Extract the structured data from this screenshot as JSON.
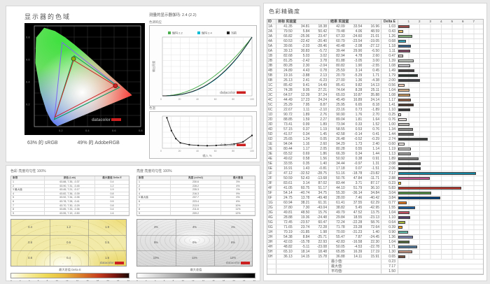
{
  "gamut": {
    "title": "显示器的色域",
    "caption_srgb": "63% 的 sRGB",
    "caption_adobergb": "49% 的 AdobeRGB",
    "axis_ticks": [
      "0.2",
      "0.4",
      "0.6",
      "0.8"
    ],
    "triangles": {
      "display": "#cc2222",
      "srgb": "#00a650",
      "adobergb": "#7b68ee"
    }
  },
  "tone": {
    "title": "测量的显示器伽玛:  2.4 (2.2)",
    "chart_label": "色调响应",
    "legend": [
      {
        "label": "伽玛 2.2",
        "color": "#4caf50"
      },
      {
        "label": "伽玛 2.4",
        "color": "#00bcd4"
      },
      {
        "label": "当前",
        "color": "#222222"
      }
    ],
    "ylabel": "输出亮度",
    "x_ticks": [
      "0",
      "20",
      "40",
      "60",
      "80",
      "100"
    ],
    "temp_chart_label": "色温",
    "temp_xlabel": "输入 %",
    "temp_points": [
      [
        5,
        0.95
      ],
      [
        10,
        0.55
      ],
      [
        15,
        0.3
      ],
      [
        20,
        0.17
      ],
      [
        30,
        0.11
      ],
      [
        40,
        0.09
      ],
      [
        50,
        0.08
      ],
      [
        60,
        0.09
      ],
      [
        70,
        0.11
      ],
      [
        80,
        0.13
      ],
      [
        90,
        0.2
      ],
      [
        100,
        0.4
      ]
    ]
  },
  "logo_text": "datacolor",
  "uniformity_color": {
    "title": "色彩 亮度均匀性 100%",
    "headers": [
      "象限",
      "颜色 (Lab)",
      "最大差值 Delta E"
    ],
    "rows": [
      [
        "1",
        "63.88, 7.35, -0.37",
        "0.4"
      ],
      [
        "2",
        "63.90, 7.31, -0.45",
        "1.2"
      ],
      [
        "3  最大值",
        "63.45, 7.21, -0.17",
        "1.9"
      ],
      [
        "4",
        "63.82, 7.36, -0.39",
        "0.8"
      ],
      [
        "5",
        "63.92, 7.34, -0.35",
        "0.6"
      ],
      [
        "6",
        "63.78, 7.28, -0.41",
        "0.5"
      ],
      [
        "7",
        "63.70, 7.30, -0.29",
        "0.8"
      ],
      [
        "8",
        "63.85, 7.33, -0.36",
        "0.4"
      ],
      [
        "9",
        "63.55, 7.19, -0.50",
        "1.6"
      ]
    ],
    "contour_values": [
      [
        "0.4",
        "1.2",
        "1.9"
      ],
      [
        "0.8",
        "0.6",
        "0.5"
      ],
      [
        "0.8",
        "0.4",
        "1.6"
      ]
    ],
    "scale_label": "最大差值 Delta E",
    "scale_min": 0,
    "scale_max": 24
  },
  "uniformity_lum": {
    "title": "亮度 亮度均匀性 100%",
    "headers": [
      "象限",
      "亮度 (cd/m2)",
      "最大差值"
    ],
    "rows": [
      [
        "1",
        "230.6",
        "3%"
      ],
      [
        "2",
        "228.2",
        "4%"
      ],
      [
        "3",
        "235.3",
        "1%"
      ],
      [
        "4",
        "216.3",
        "9%"
      ],
      [
        "5  最大值",
        "237.7",
        "0%"
      ],
      [
        "6",
        "223.4",
        "6%"
      ],
      [
        "7",
        "213.9",
        "10%"
      ],
      [
        "8",
        "211.6",
        "11%"
      ],
      [
        "9",
        "209.2",
        "12%"
      ]
    ],
    "contour_values": [
      [
        "3%",
        "4%",
        "1%"
      ],
      [
        "9%",
        "0%",
        "6%"
      ],
      [
        "10%",
        "11%",
        "12%"
      ]
    ],
    "scale_label": "最大差值",
    "scale_min": 0,
    "scale_max": 24
  },
  "accuracy": {
    "title": "色彩精确度",
    "headers": {
      "id": "ID",
      "target": "目标 实验室",
      "result": "结果 实验室",
      "delta": "Delta E"
    },
    "scale_ticks": [
      "1",
      "2",
      "3",
      "4",
      "5",
      "6",
      "7"
    ],
    "rows": [
      [
        "1A",
        41.35,
        34.81,
        18.38,
        42.09,
        33.54,
        16.96,
        1.03
      ],
      [
        "2A",
        79.5,
        5.84,
        50.42,
        79.48,
        4.06,
        48.59,
        0.43
      ],
      [
        "3A",
        66.82,
        -25.06,
        23.47,
        67.33,
        -24.6,
        21.01,
        1.26
      ],
      [
        "4A",
        60.53,
        -22.42,
        -20.4,
        60.79,
        -23.54,
        -19.05,
        0.68
      ],
      [
        "5A",
        39.66,
        -2.03,
        -28.46,
        40.48,
        -2.08,
        -27.12,
        1.18
      ],
      [
        "6A",
        39.13,
        30.83,
        -5.72,
        39.44,
        29.9,
        -6.5,
        1.11
      ],
      [
        "1B",
        82.68,
        5.03,
        3.02,
        82.94,
        4.78,
        2.6,
        0.47
      ],
      [
        "2B",
        81.25,
        -2.42,
        3.78,
        81.88,
        -3.05,
        3.0,
        1.39
      ],
      [
        "3B",
        80.28,
        2.3,
        -2.04,
        80.82,
        1.9,
        -2.55,
        1.08
      ],
      [
        "4B",
        24.89,
        4.43,
        0.78,
        25.59,
        3.14,
        0.45,
        1.49
      ],
      [
        "5B",
        19.16,
        -3.88,
        2.13,
        20.79,
        -5.29,
        1.71,
        1.79
      ],
      [
        "6B",
        26.13,
        2.41,
        -6.23,
        27.0,
        1.36,
        -4.38,
        2.0
      ],
      [
        "1C",
        85.42,
        9.41,
        14.49,
        85.41,
        9.82,
        14.13,
        0.56
      ],
      [
        "2C",
        74.28,
        9.05,
        27.21,
        74.64,
        8.28,
        25.11,
        1.04
      ],
      [
        "3C",
        64.57,
        12.39,
        37.24,
        65.03,
        10.87,
        35.88,
        1.08
      ],
      [
        "4C",
        44.49,
        17.23,
        24.24,
        45.49,
        16.89,
        24.14,
        1.17
      ],
      [
        "5C",
        25.29,
        7.95,
        8.87,
        25.95,
        6.65,
        8.18,
        1.41
      ],
      [
        "6C",
        22.67,
        1.11,
        -2.1,
        23.16,
        0.73,
        -1.89,
        1.1
      ],
      [
        "1D",
        90.72,
        1.89,
        2.76,
        90.9,
        1.76,
        2.7,
        0.25
      ],
      [
        "2D",
        88.85,
        1.59,
        2.27,
        89.04,
        1.81,
        1.64,
        0.76
      ],
      [
        "3D",
        73.41,
        0.99,
        1.89,
        73.94,
        0.33,
        1.52,
        1.0
      ],
      [
        "4D",
        57.15,
        0.37,
        1.19,
        58.55,
        0.53,
        0.76,
        1.34
      ],
      [
        "5D",
        41.57,
        0.34,
        1.45,
        42.58,
        -0.14,
        0.41,
        1.44
      ],
      [
        "6D",
        25.65,
        1.24,
        0.05,
        26.48,
        -0.52,
        -0.29,
        2.74
      ],
      [
        "1E",
        94.04,
        1.16,
        2.6,
        94.29,
        1.73,
        2.4,
        0.6
      ],
      [
        "2E",
        80.44,
        1.17,
        2.05,
        80.28,
        0.55,
        1.14,
        1.19
      ],
      [
        "3E",
        65.52,
        0.69,
        1.86,
        66.39,
        0.34,
        1.44,
        1.13
      ],
      [
        "4E",
        49.62,
        0.58,
        1.56,
        50.92,
        0.38,
        0.91,
        1.89
      ],
      [
        "5E",
        33.55,
        0.35,
        1.4,
        34.44,
        -0.97,
        1.31,
        2.08
      ],
      [
        "6E",
        16.91,
        1.43,
        -0.81,
        17.18,
        0.07,
        -1.51,
        2.06
      ],
      [
        "1F",
        47.12,
        -32.52,
        -28.75,
        51.16,
        -18.78,
        -23.82,
        7.17
      ],
      [
        "2F",
        50.59,
        52.43,
        -13.68,
        50.76,
        47.84,
        -11.71,
        2.88
      ],
      [
        "3F",
        83.61,
        3.14,
        87.02,
        83.44,
        3.71,
        87.17,
        0.23
      ],
      [
        "4F",
        41.05,
        60.75,
        51.17,
        44.1,
        51.79,
        36.1,
        5.83
      ],
      [
        "5F",
        54.14,
        -40.74,
        34.75,
        55.3,
        -36.14,
        34.84,
        3.04
      ],
      [
        "6F",
        24.75,
        13.78,
        -49.48,
        28.0,
        7.46,
        -40.42,
        3.84
      ],
      [
        "1G",
        60.94,
        38.21,
        61.31,
        61.41,
        37.55,
        62.29,
        0.77
      ],
      [
        "2G",
        37.8,
        7.3,
        -43.04,
        38.82,
        5.45,
        -42.95,
        1.55
      ],
      [
        "3G",
        49.81,
        48.5,
        15.76,
        49.79,
        47.52,
        13.75,
        1.04
      ],
      [
        "4G",
        28.88,
        19.36,
        -24.48,
        29.84,
        18.55,
        -23.13,
        1.1
      ],
      [
        "5G",
        72.45,
        -23.57,
        60.47,
        72.24,
        -22.28,
        58.76,
        0.64
      ],
      [
        "6G",
        71.65,
        23.74,
        72.28,
        71.78,
        23.28,
        72.64,
        0.39
      ],
      [
        "1H",
        70.19,
        -31.85,
        1.98,
        70.0,
        -31.23,
        1.4,
        0.9
      ],
      [
        "2H",
        54.38,
        8.84,
        -25.71,
        55.47,
        7.87,
        -24.45,
        1.36
      ],
      [
        "3H",
        42.03,
        -15.78,
        22.93,
        42.83,
        -16.58,
        22.3,
        1.04
      ],
      [
        "4H",
        48.82,
        -5.11,
        -23.08,
        50.05,
        -4.53,
        -22.78,
        1.71
      ],
      [
        "5H",
        65.1,
        18.14,
        18.48,
        65.85,
        16.39,
        17.19,
        1.3
      ],
      [
        "6H",
        36.13,
        14.15,
        15.78,
        36.88,
        14.11,
        15.91,
        0.65
      ]
    ],
    "summary": [
      {
        "label": "最小值:",
        "value": "0.23"
      },
      {
        "label": "最大值:",
        "value": "7.17"
      },
      {
        "label": "平均值:",
        "value": "1.50"
      }
    ]
  }
}
